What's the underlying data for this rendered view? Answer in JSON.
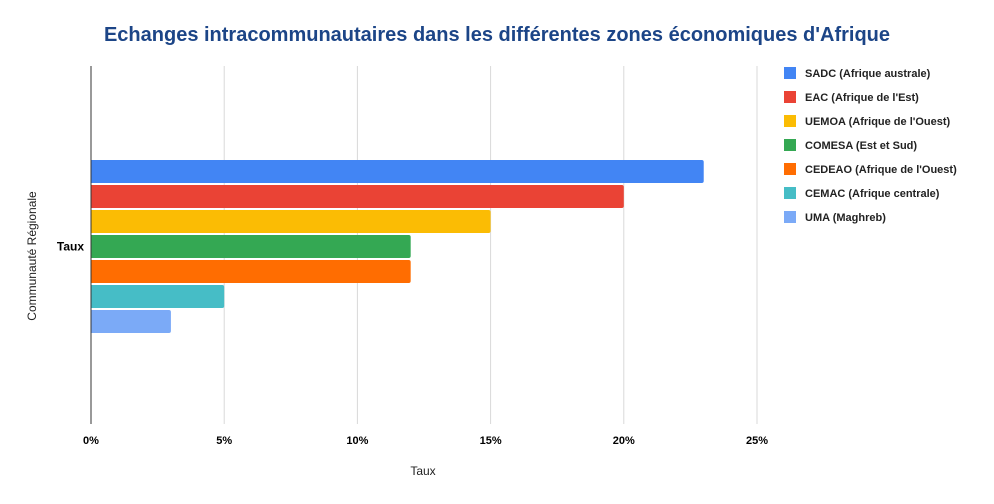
{
  "chart_data": {
    "type": "bar",
    "orientation": "horizontal",
    "title": "Echanges intracommunautaires dans les différentes zones économiques d'Afrique",
    "xlabel": "Taux",
    "ylabel": "Communauté Régionale",
    "categories": [
      "Taux"
    ],
    "xlim": [
      0,
      0.25
    ],
    "x_ticks": [
      0,
      0.05,
      0.1,
      0.15,
      0.2,
      0.25
    ],
    "x_tick_labels": [
      "0%",
      "5%",
      "10%",
      "15%",
      "20%",
      "25%"
    ],
    "grid": "vertical",
    "legend_position": "right",
    "series": [
      {
        "name": "SADC (Afrique australe)",
        "values": [
          0.23
        ],
        "color": "#4285f4"
      },
      {
        "name": "EAC (Afrique de l'Est)",
        "values": [
          0.2
        ],
        "color": "#ea4335"
      },
      {
        "name": "UEMOA (Afrique de l'Ouest)",
        "values": [
          0.15
        ],
        "color": "#fbbc04"
      },
      {
        "name": "COMESA (Est et Sud)",
        "values": [
          0.12
        ],
        "color": "#34a853"
      },
      {
        "name": "CEDEAO (Afrique de l'Ouest)",
        "values": [
          0.12
        ],
        "color": "#ff6d01"
      },
      {
        "name": "CEMAC (Afrique centrale)",
        "values": [
          0.05
        ],
        "color": "#46bdc6"
      },
      {
        "name": "UMA (Maghreb)",
        "values": [
          0.03
        ],
        "color": "#7baaf7"
      }
    ]
  }
}
